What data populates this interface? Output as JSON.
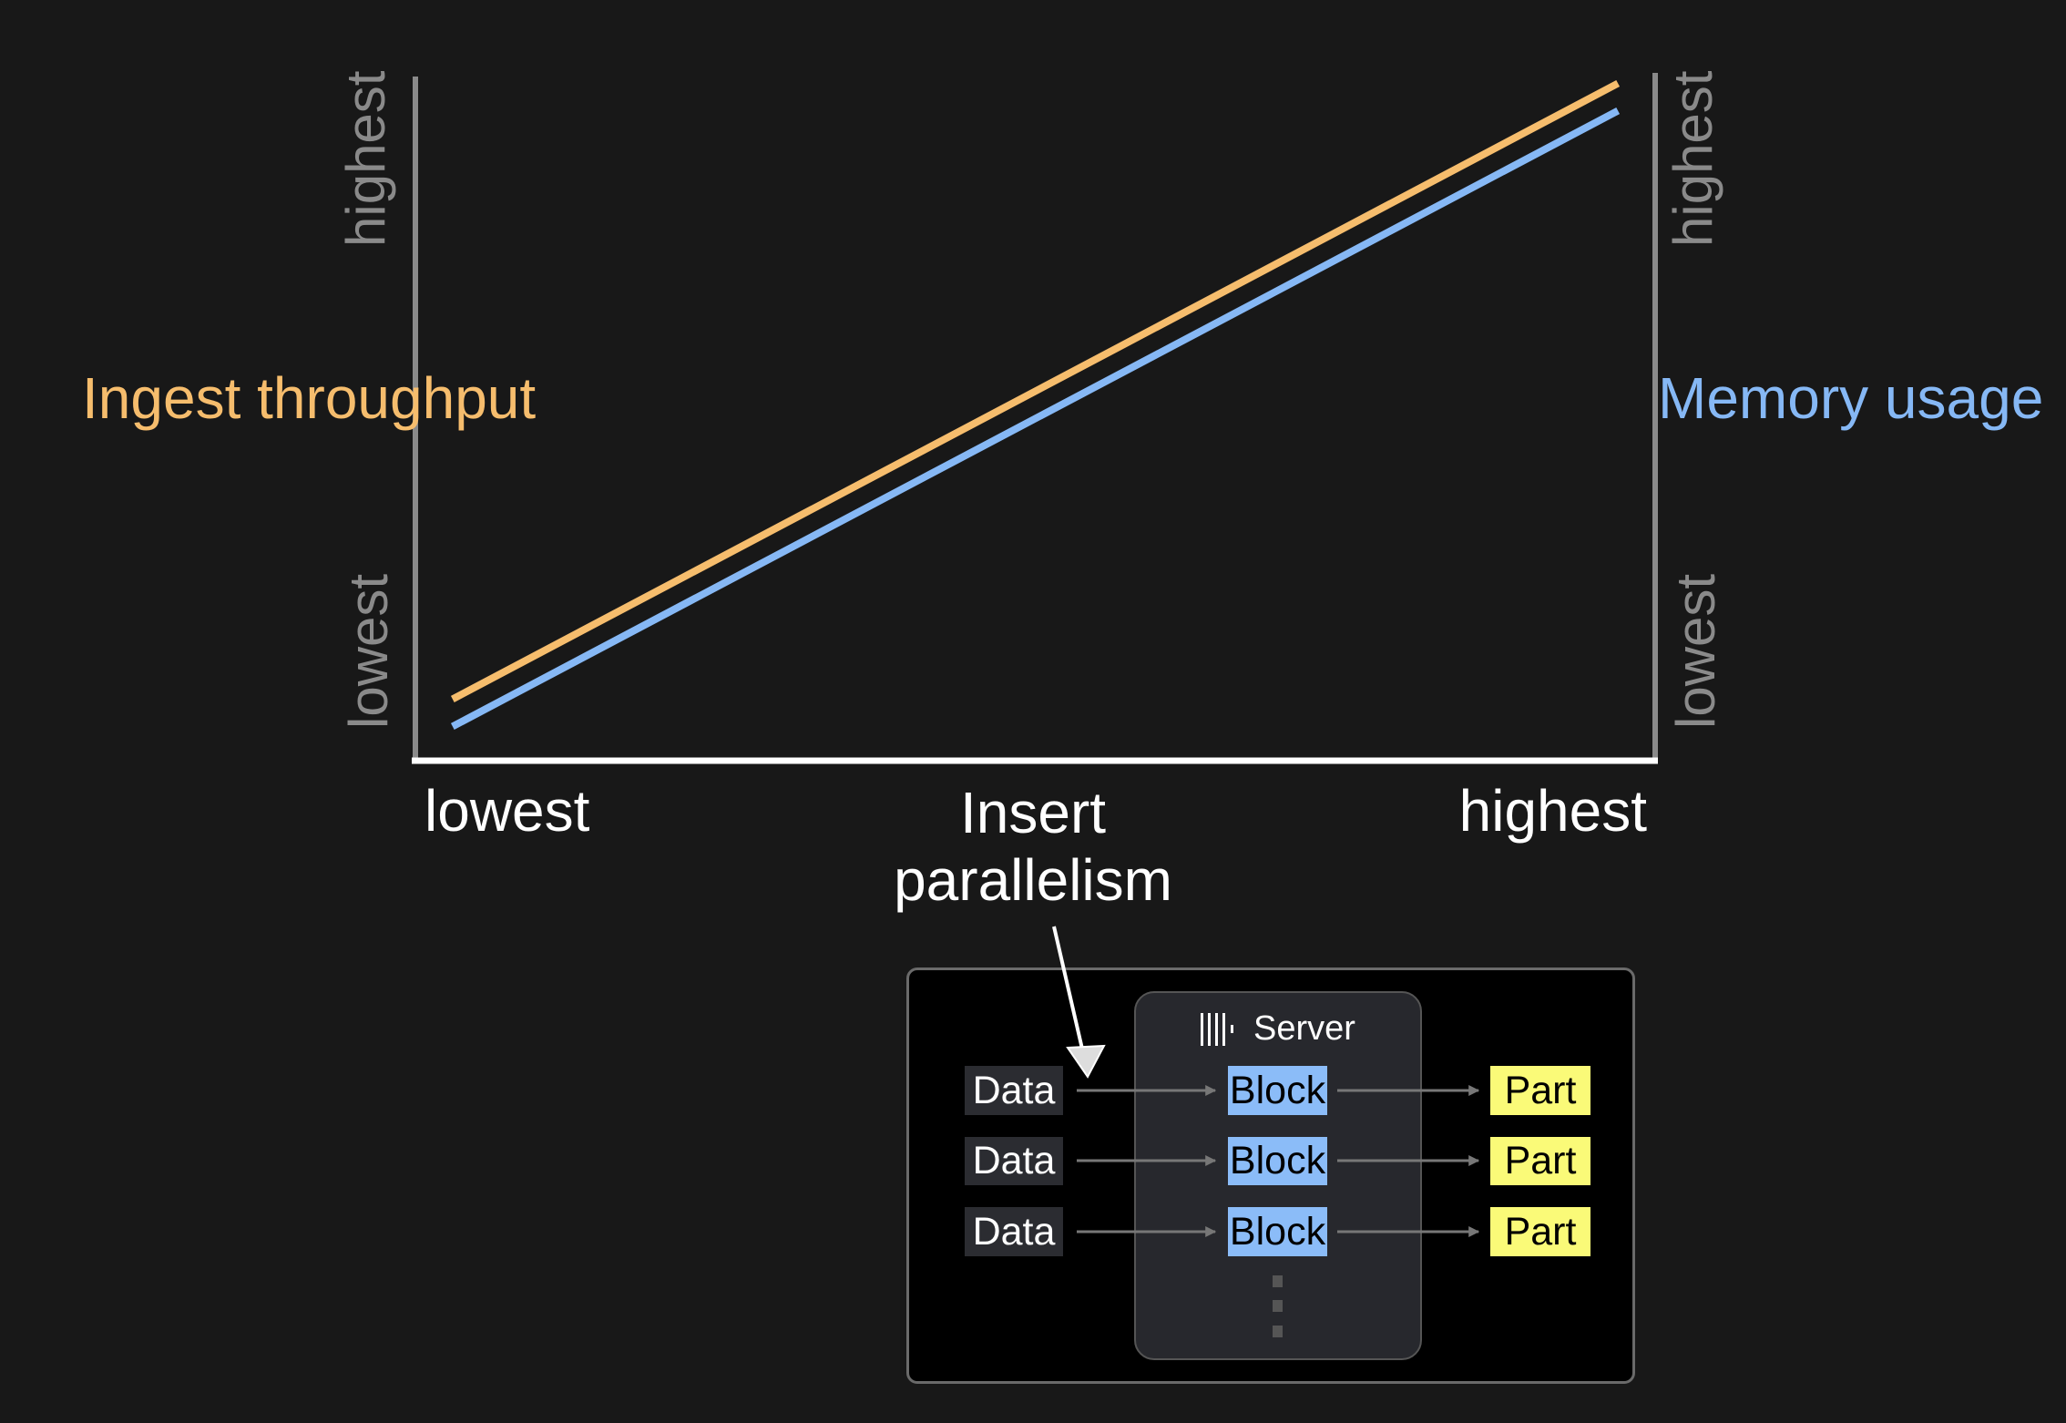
{
  "chart_data": {
    "type": "line",
    "xlabel": "Insert parallelism",
    "ylabel_left": "Ingest throughput",
    "ylabel_right": "Memory usage",
    "x_ticks": [
      "lowest",
      "highest"
    ],
    "y_left_ticks": [
      "lowest",
      "highest"
    ],
    "y_right_ticks": [
      "lowest",
      "highest"
    ],
    "x": [
      0.03,
      0.97
    ],
    "series": [
      {
        "name": "Ingest throughput",
        "axis": "left",
        "color": "#f6bd6d",
        "values": [
          0.09,
          0.99
        ]
      },
      {
        "name": "Memory usage",
        "axis": "right",
        "color": "#86b8f5",
        "values": [
          0.05,
          0.95
        ]
      }
    ],
    "xlim": [
      0,
      1
    ],
    "ylim": [
      0,
      1
    ],
    "grid": false
  },
  "diagram": {
    "server_label": "Server",
    "server_icon": "clickhouse-bars-icon",
    "rows": [
      {
        "data": "Data",
        "block": "Block",
        "part": "Part"
      },
      {
        "data": "Data",
        "block": "Block",
        "part": "Part"
      },
      {
        "data": "Data",
        "block": "Block",
        "part": "Part"
      }
    ],
    "colors": {
      "block": "#8bbcf8",
      "part": "#fafa78",
      "data": "#2b2c31"
    }
  }
}
